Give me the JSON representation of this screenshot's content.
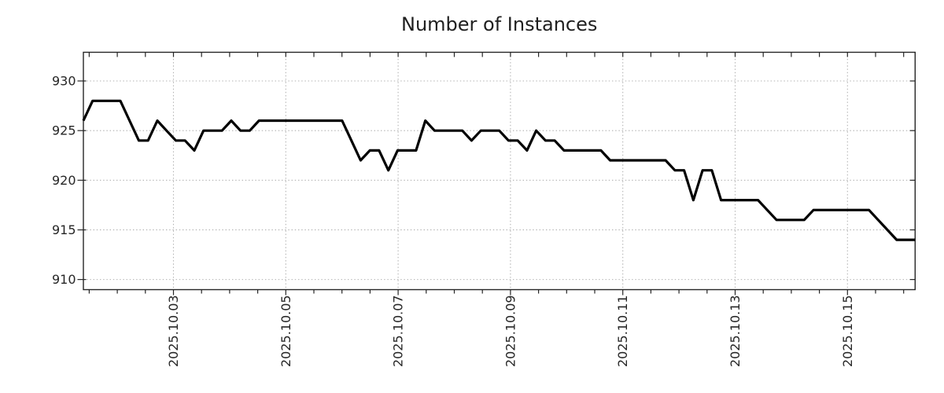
{
  "page": {
    "background": "#ffffff"
  },
  "chart_data": {
    "type": "line",
    "title": "Number of Instances",
    "series": [
      {
        "name": "instances",
        "color": "#000000",
        "line_width": 3.2,
        "x_start_day": 0.3964,
        "x_step_day": 0.164535,
        "values": [
          926,
          928,
          928,
          928,
          928,
          926,
          924,
          924,
          926,
          925,
          924,
          924,
          923,
          925,
          925,
          925,
          926,
          925,
          925,
          926,
          926,
          926,
          926,
          926,
          926,
          926,
          926,
          926,
          926,
          924,
          922,
          923,
          923,
          921,
          923,
          923,
          923,
          926,
          925,
          925,
          925,
          925,
          924,
          925,
          925,
          925,
          924,
          924,
          923,
          925,
          924,
          924,
          923,
          923,
          923,
          923,
          923,
          922,
          922,
          922,
          922,
          922,
          922,
          922,
          921,
          921,
          918,
          921,
          921,
          918,
          918,
          918,
          918,
          918,
          917,
          916,
          916,
          916,
          916,
          917,
          917,
          917,
          917,
          917,
          917,
          917,
          916,
          915,
          914,
          914,
          914
        ]
      }
    ],
    "x_axis": {
      "range_days": [
        0.3964,
        15.2045
      ],
      "major_ticks": [
        {
          "day": 2,
          "label": "2025.10.03"
        },
        {
          "day": 4,
          "label": "2025.10.05"
        },
        {
          "day": 6,
          "label": "2025.10.07"
        },
        {
          "day": 8,
          "label": "2025.10.09"
        },
        {
          "day": 10,
          "label": "2025.10.11"
        },
        {
          "day": 12,
          "label": "2025.10.13"
        },
        {
          "day": 14,
          "label": "2025.10.15"
        }
      ],
      "minor_tick_start_day": 0.5,
      "minor_tick_end_day": 15.0,
      "minor_tick_interval_days": 0.5
    },
    "y_axis": {
      "range": [
        908.98,
        932.89
      ],
      "major_ticks": [
        910,
        915,
        920,
        925,
        930
      ]
    },
    "grid": {
      "show": true,
      "color": "#b0b0b0",
      "dash": "1.4 2.8"
    },
    "style": {
      "line_color": "#000000",
      "axis_color": "#262626",
      "text_color": "#262626",
      "title_color": "#1f1f1f",
      "background": "#ffffff"
    }
  }
}
